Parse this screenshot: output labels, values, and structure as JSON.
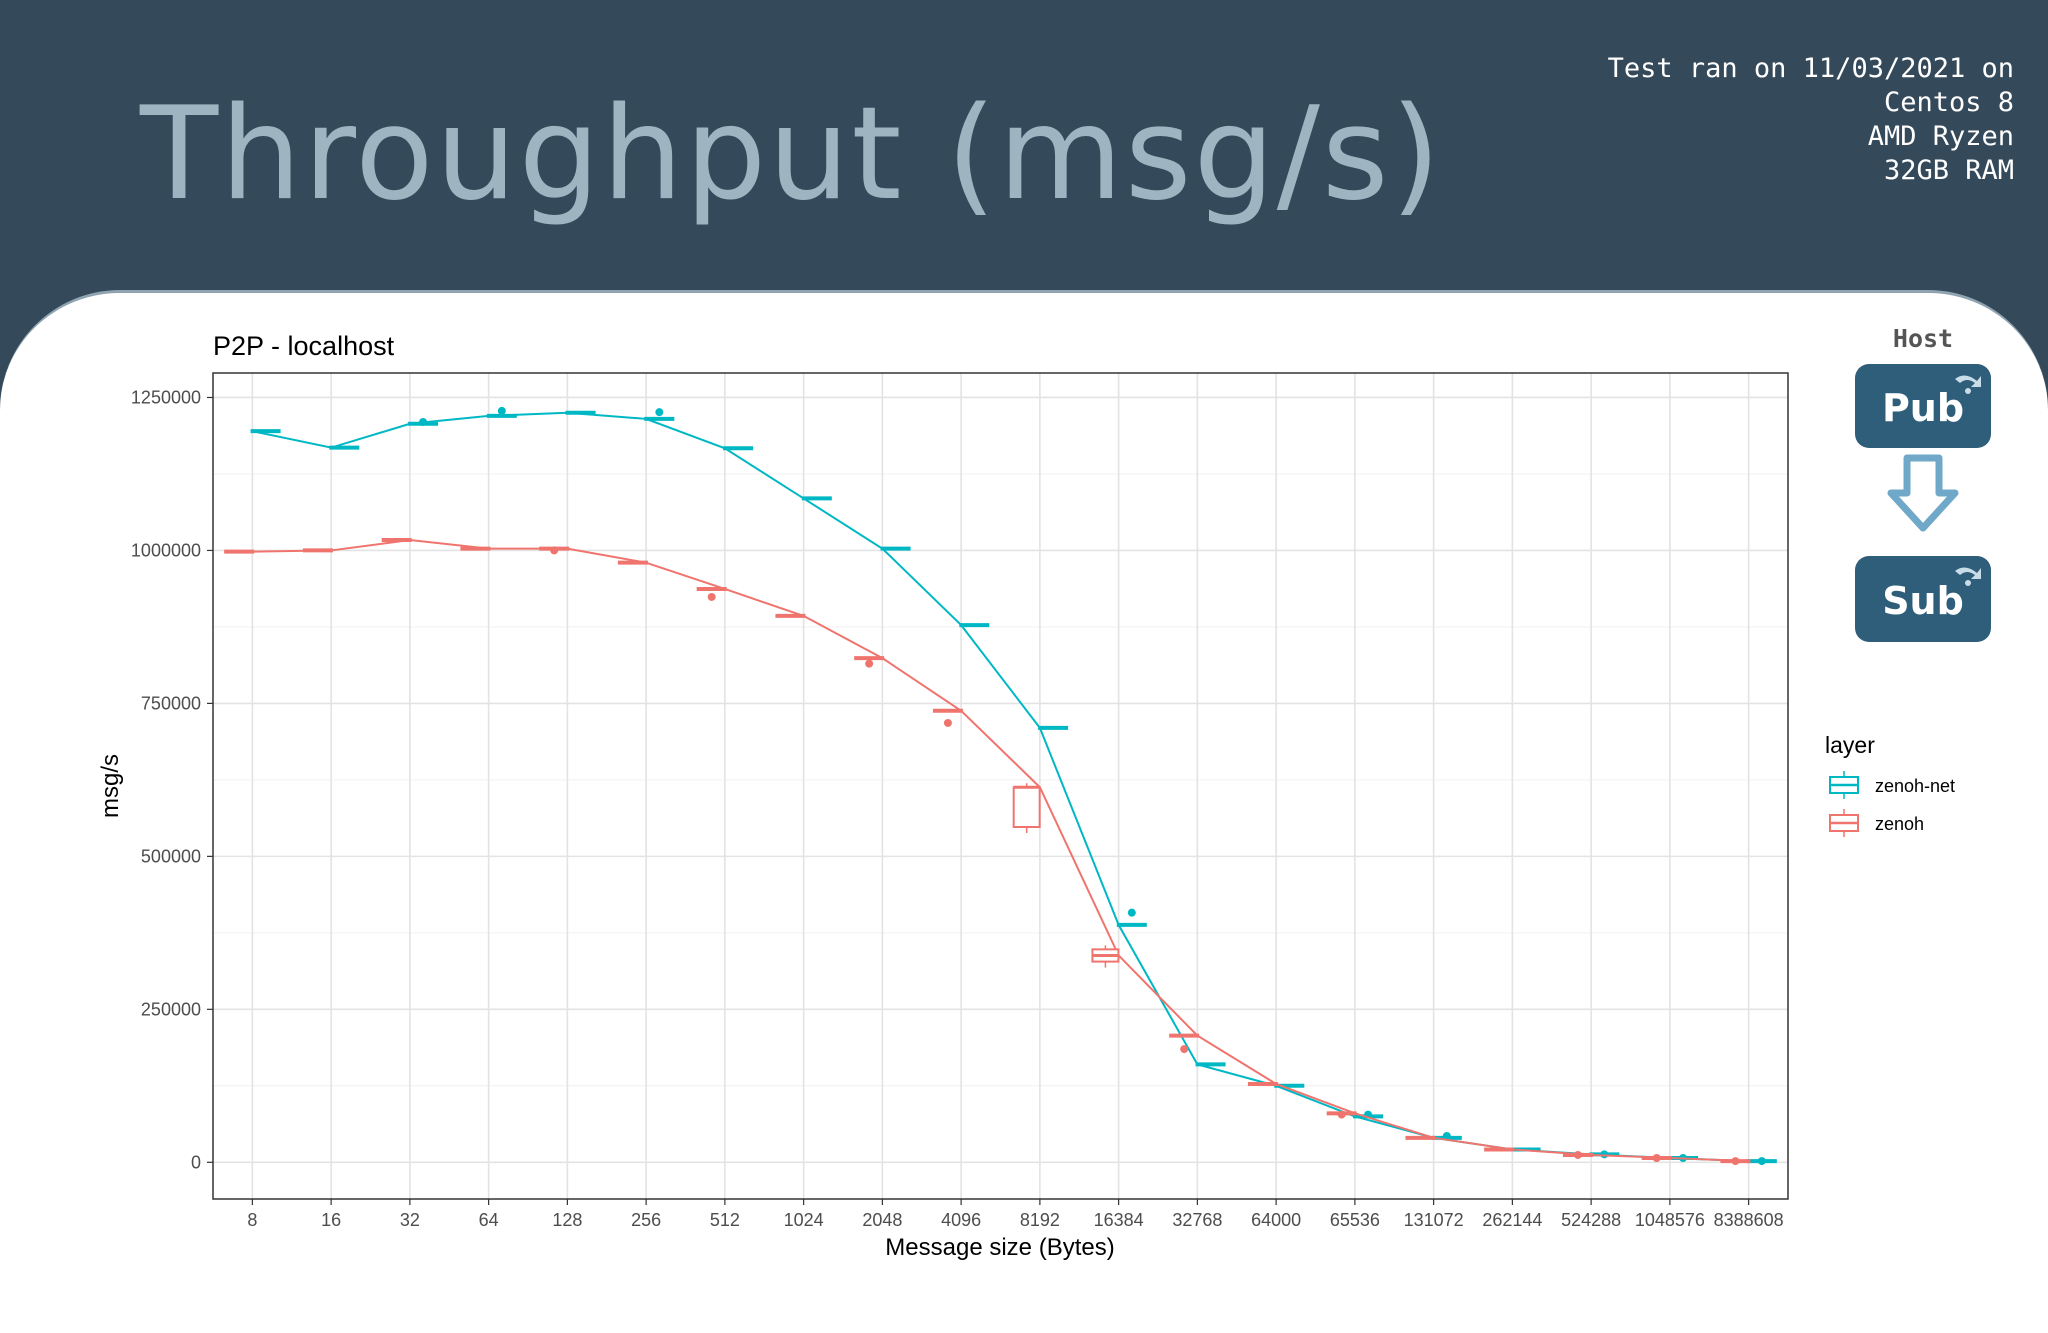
{
  "header": {
    "title": "Throughput (msg/s)",
    "test_info": [
      "Test ran on 11/03/2021 on",
      "Centos 8",
      "AMD Ryzen",
      "32GB RAM"
    ]
  },
  "diagram": {
    "host_label": "Host",
    "pub_label": "Pub",
    "sub_label": "Sub",
    "node_color": "#2f5e7b",
    "arrow_color": "#6fa8c8"
  },
  "chart_data": {
    "type": "line",
    "title": "P2P - localhost",
    "xlabel": "Message size (Bytes)",
    "ylabel": "msg/s",
    "categories": [
      "8",
      "16",
      "32",
      "64",
      "128",
      "256",
      "512",
      "1024",
      "2048",
      "4096",
      "8192",
      "16384",
      "32768",
      "64000",
      "65536",
      "131072",
      "262144",
      "524288",
      "1048576",
      "8388608"
    ],
    "yticks": [
      0,
      250000,
      500000,
      750000,
      1000000,
      1250000
    ],
    "yticklabels": [
      "0",
      "250000",
      "500000",
      "750000",
      "1000000",
      "1250000"
    ],
    "ylim": [
      -60000,
      1290000
    ],
    "grid": true,
    "legend": {
      "title": "layer",
      "placement": "right"
    },
    "series": [
      {
        "name": "zenoh-net",
        "color": "#00b8c4",
        "values": [
          1195000,
          1168000,
          1207000,
          1220000,
          1225000,
          1215000,
          1167000,
          1085000,
          1003000,
          878000,
          710000,
          388000,
          160000,
          125000,
          75000,
          40000,
          21000,
          13000,
          7000,
          2000
        ],
        "outliers": [
          null,
          null,
          1210000,
          1228000,
          null,
          1226000,
          null,
          null,
          null,
          null,
          null,
          408000,
          null,
          null,
          78000,
          43000,
          null,
          13000,
          7000,
          2000
        ]
      },
      {
        "name": "zenoh",
        "color": "#f0746e",
        "values": [
          998000,
          1000000,
          1017000,
          1003000,
          1003000,
          980000,
          937000,
          893000,
          824000,
          738000,
          613000,
          338000,
          207000,
          128000,
          80000,
          40000,
          21000,
          12000,
          7000,
          2000
        ],
        "outliers": [
          null,
          null,
          null,
          null,
          1000000,
          null,
          924000,
          null,
          815000,
          718000,
          null,
          null,
          185000,
          null,
          78000,
          null,
          null,
          12000,
          7000,
          2000
        ],
        "boxes": [
          null,
          null,
          null,
          null,
          null,
          null,
          null,
          null,
          null,
          null,
          [
            548000,
            613000
          ],
          [
            328000,
            348000
          ],
          null,
          null,
          null,
          null,
          null,
          null,
          null,
          null
        ]
      }
    ]
  }
}
